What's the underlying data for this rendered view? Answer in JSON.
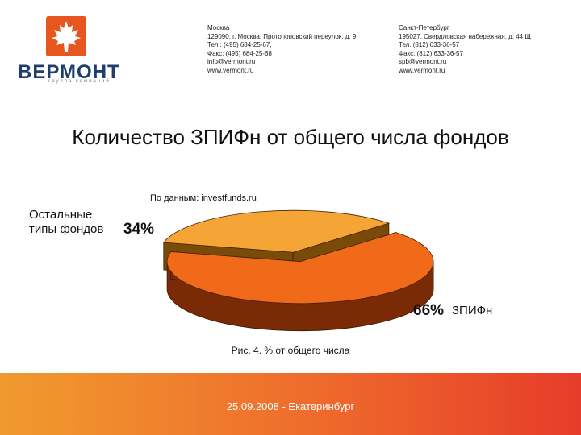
{
  "header": {
    "logo_icon": "maple-leaf-icon",
    "logo_color": "#e8561f",
    "brand": "ВЕРМОНТ",
    "brand_sub": "группа компаний",
    "moscow": "Москва\n129090, г. Москва, Протопоповский переулок, д. 9\nТел.: (495) 684-25-67,\nФакс: (495) 684-25-68\ninfo@vermont.ru\nwww.vermont.ru",
    "spb": "Санкт-Петербург\n195027, Свердловская набережная, д. 44 Щ\nТел. (812) 633-36-57\nФакс. (812) 633-36-57\nspb@vermont.ru\nwww.vermont.ru"
  },
  "title": "Количество ЗПИФн от общего числа фондов",
  "source": "По данным: investfunds.ru",
  "caption": "Рис. 4. % от общего числа",
  "footer": "25.09.2008 -  Екатеринбург",
  "chart_data": {
    "type": "pie",
    "slices": [
      {
        "label": "ЗПИФн",
        "value": 66,
        "value_label": "66%",
        "color": "#f06a1a",
        "side_color": "#7a2a05"
      },
      {
        "label": "Остальные\nтипы фондов",
        "value": 34,
        "value_label": "34%",
        "color": "#f5a436",
        "side_color": "#7a4a08"
      }
    ],
    "exploded": true,
    "three_d": true
  }
}
